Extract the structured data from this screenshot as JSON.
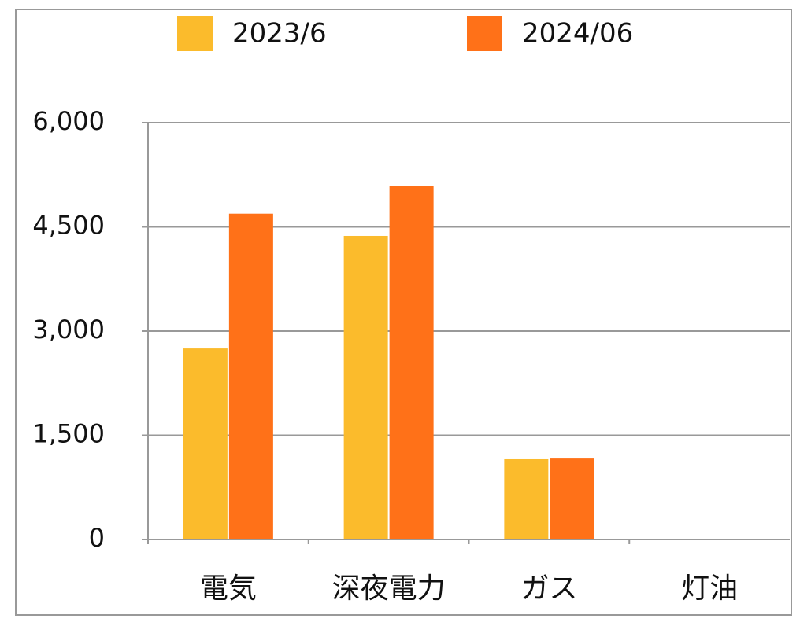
{
  "chart_data": {
    "type": "bar",
    "categories": [
      "電気",
      "深夜電力",
      "ガス",
      "灯油"
    ],
    "series": [
      {
        "name": "2023/6",
        "color": "#fbbb2c",
        "values": [
          2750,
          4370,
          1155,
          0
        ]
      },
      {
        "name": "2024/06",
        "color": "#ff7118",
        "values": [
          4690,
          5090,
          1165,
          0
        ]
      }
    ],
    "ylim": [
      0,
      6000
    ],
    "yticks": [
      {
        "value": 0,
        "label": "0"
      },
      {
        "value": 1500,
        "label": "1,500"
      },
      {
        "value": 3000,
        "label": "3,000"
      },
      {
        "value": 4500,
        "label": "4,500"
      },
      {
        "value": 6000,
        "label": "6,000"
      }
    ],
    "grid": true
  }
}
